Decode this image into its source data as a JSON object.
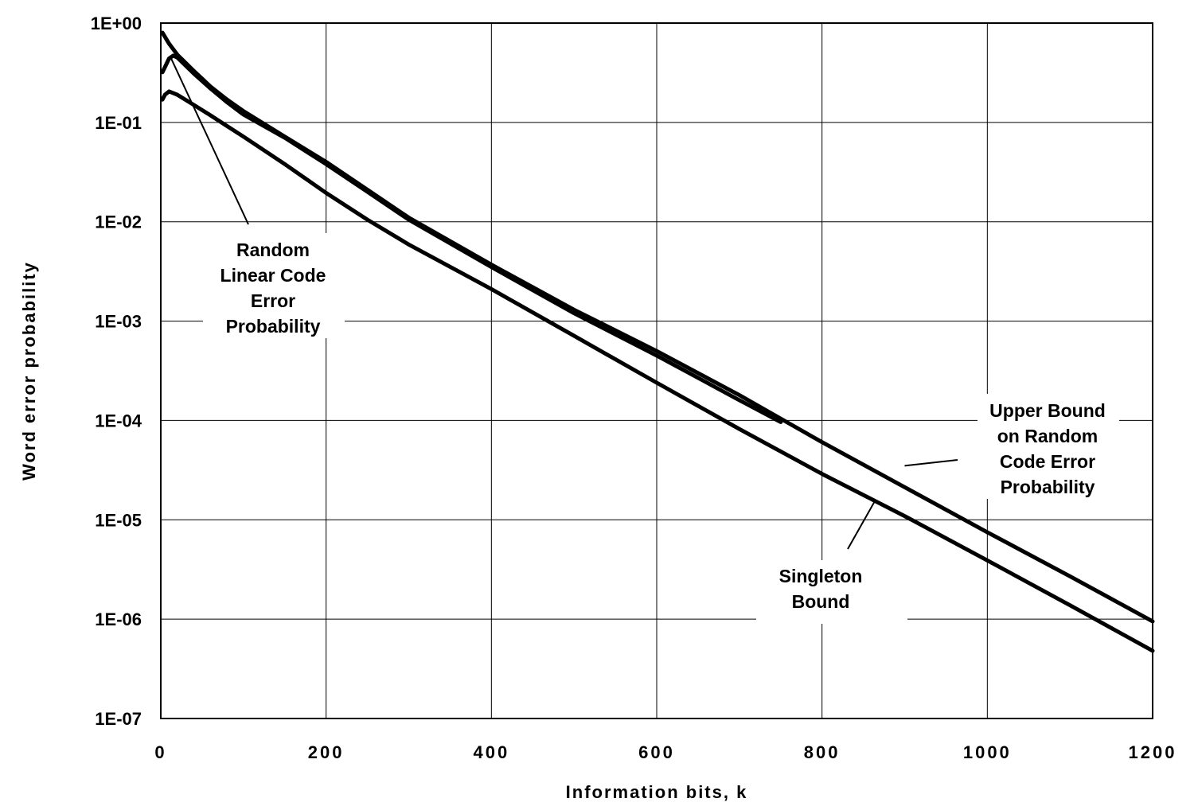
{
  "chart_data": {
    "type": "line",
    "xlabel": "Information  bits,  k",
    "ylabel": "Word  error  probability",
    "xlim": [
      0,
      1200
    ],
    "ylim": [
      1e-07,
      1
    ],
    "yscale": "log",
    "grid": true,
    "x_ticks": [
      0,
      200,
      400,
      600,
      800,
      1000,
      1200
    ],
    "x_tick_labels": [
      "0",
      "200",
      "400",
      "600",
      "800",
      "1000",
      "1200"
    ],
    "y_ticks": [
      1,
      0.1,
      0.01,
      0.001,
      0.0001,
      1e-05,
      1e-06,
      1e-07
    ],
    "y_tick_labels": [
      "1E+00",
      "1E-01",
      "1E-02",
      "1E-03",
      "1E-04",
      "1E-05",
      "1E-06",
      "1E-07"
    ],
    "series": [
      {
        "key": "upper",
        "x": [
          2,
          10,
          20,
          40,
          60,
          80,
          100,
          150,
          200,
          250,
          300,
          400,
          500,
          600,
          700,
          800,
          900,
          1000,
          1100,
          1200
        ],
        "y": [
          0.8,
          0.62,
          0.48,
          0.33,
          0.23,
          0.17,
          0.13,
          0.072,
          0.04,
          0.021,
          0.011,
          0.0037,
          0.0013,
          0.0005,
          0.00018,
          6.05e-05,
          2.13e-05,
          7.5e-06,
          2.7e-06,
          9.5e-07
        ]
      },
      {
        "key": "random_linear",
        "x": [
          2,
          5,
          10,
          15,
          20,
          40,
          60,
          80,
          100,
          150,
          200,
          250,
          300,
          400,
          500,
          600,
          700,
          750
        ],
        "y": [
          0.32,
          0.36,
          0.44,
          0.47,
          0.45,
          0.31,
          0.22,
          0.16,
          0.12,
          0.07,
          0.038,
          0.02,
          0.0105,
          0.0035,
          0.0012,
          0.00045,
          0.00016,
          9.65e-05
        ]
      },
      {
        "key": "singleton",
        "x": [
          2,
          5,
          10,
          20,
          40,
          60,
          80,
          100,
          150,
          200,
          250,
          300,
          400,
          500,
          600,
          700,
          800,
          900,
          1000,
          1100,
          1200
        ],
        "y": [
          0.17,
          0.19,
          0.205,
          0.19,
          0.15,
          0.118,
          0.092,
          0.072,
          0.038,
          0.0195,
          0.0105,
          0.0059,
          0.0021,
          0.00071,
          0.00024,
          8.2e-05,
          2.9e-05,
          1.09e-05,
          3.9e-06,
          1.38e-06,
          4.8e-07
        ]
      }
    ],
    "annotations": [
      {
        "key": "random_linear_label",
        "lines": [
          "Random",
          "Linear Code",
          "Error",
          "Probability"
        ],
        "arrow_to": {
          "x": 12,
          "y": 0.45
        }
      },
      {
        "key": "upper_bound_label",
        "lines": [
          "Upper Bound",
          "on Random",
          "Code Error",
          "Probability"
        ],
        "arrow_to": {
          "x": 900,
          "y": 3.5e-05
        }
      },
      {
        "key": "singleton_label",
        "lines": [
          "Singleton",
          "Bound"
        ],
        "arrow_to": {
          "x": 865,
          "y": 1.6e-05
        }
      }
    ]
  }
}
